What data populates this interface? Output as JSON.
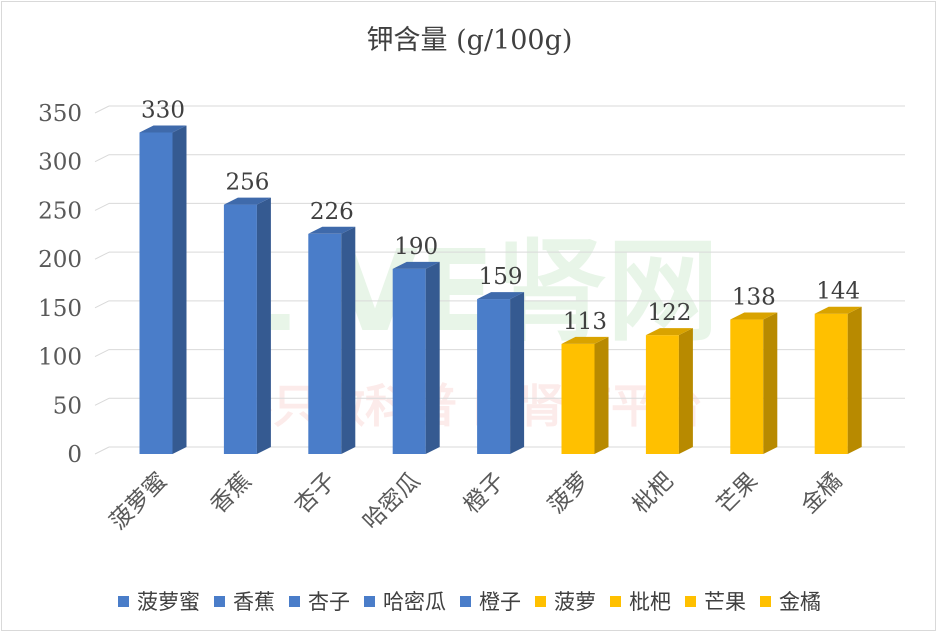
{
  "chart_data": {
    "type": "bar",
    "title": "钾含量 (g/100g)",
    "xlabel": "",
    "ylabel": "",
    "categories": [
      "菠萝蜜",
      "香蕉",
      "杏子",
      "哈密瓜",
      "橙子",
      "菠萝",
      "枇杷",
      "芒果",
      "金橘"
    ],
    "values": [
      330,
      256,
      226,
      190,
      159,
      113,
      122,
      138,
      144
    ],
    "colors": [
      "#4a7dc9",
      "#4a7dc9",
      "#4a7dc9",
      "#4a7dc9",
      "#4a7dc9",
      "#ffc000",
      "#ffc000",
      "#ffc000",
      "#ffc000"
    ],
    "ylim": [
      0,
      350
    ],
    "yticks": [
      0,
      50,
      100,
      150,
      200,
      250,
      300,
      350
    ],
    "grid": true,
    "legend_position": "bottom",
    "legend": [
      {
        "label": "菠萝蜜",
        "color": "#4a7dc9"
      },
      {
        "label": "香蕉",
        "color": "#4a7dc9"
      },
      {
        "label": "杏子",
        "color": "#4a7dc9"
      },
      {
        "label": "哈密瓜",
        "color": "#4a7dc9"
      },
      {
        "label": "橙子",
        "color": "#4a7dc9"
      },
      {
        "label": "菠萝",
        "color": "#ffc000"
      },
      {
        "label": "枇杷",
        "color": "#ffc000"
      },
      {
        "label": "芒果",
        "color": "#ffc000"
      },
      {
        "label": "金橘",
        "color": "#ffc000"
      }
    ],
    "watermark": {
      "main": "L VE肾网",
      "sub": "不只做科普 的肾病平台"
    }
  }
}
